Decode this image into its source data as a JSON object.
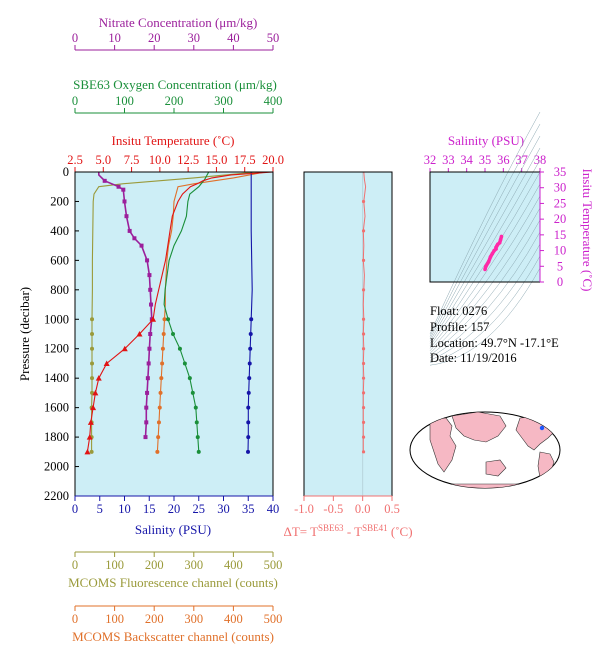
{
  "colors": {
    "nitrate": "#9b1f9b",
    "oxygen": "#1a8f3a",
    "temperature": "#e11414",
    "salinity": "#1515a8",
    "fluorescence": "#9a9a3a",
    "backscatter": "#e0702a",
    "delta_t": "#f07070",
    "ts_salinity": "#cc22cc",
    "ts_points": "#ff2aa8",
    "panel_bg": "#cdeef6"
  },
  "info": {
    "float": "Float:  0276",
    "profile": "Profile:  157",
    "location": "Location:  49.7°N  -17.1°E",
    "date": "Date:  11/19/2016"
  },
  "chart_data": [
    {
      "type": "line",
      "panel": "main profile",
      "ylabel": "Pressure (decibar)",
      "ylim": [
        2200,
        0
      ],
      "yticks": [
        0,
        200,
        400,
        600,
        800,
        1000,
        1200,
        1400,
        1600,
        1800,
        2000,
        2200
      ],
      "axes": {
        "nitrate": {
          "title": "Nitrate Concentration (μm/kg)",
          "range": [
            0,
            50
          ],
          "ticks": [
            "0",
            "10",
            "20",
            "30",
            "40",
            "50"
          ]
        },
        "oxygen": {
          "title": "SBE63 Oxygen Concentration (μm/kg)",
          "range": [
            0,
            400
          ],
          "ticks": [
            "0",
            "100",
            "200",
            "300",
            "400"
          ]
        },
        "temperature": {
          "title": "Insitu Temperature (˚C)",
          "range": [
            2.5,
            20.0
          ],
          "ticks": [
            "2.5",
            "5.0",
            "7.5",
            "10.0",
            "12.5",
            "15.0",
            "17.5",
            "20.0"
          ]
        },
        "salinity": {
          "title": "Salinity (PSU)",
          "range": [
            0,
            40
          ],
          "ticks": [
            "0",
            "5",
            "10",
            "15",
            "20",
            "25",
            "30",
            "35",
            "40"
          ]
        },
        "fluorescence": {
          "title": "MCOMS Fluorescence channel (counts)",
          "range": [
            0,
            500
          ],
          "ticks": [
            "0",
            "100",
            "200",
            "300",
            "400",
            "500"
          ]
        },
        "backscatter": {
          "title": "MCOMS Backscatter channel (counts)",
          "range": [
            0,
            500
          ],
          "ticks": [
            "0",
            "100",
            "200",
            "300",
            "400",
            "500"
          ]
        }
      },
      "series": [
        {
          "key": "temperature",
          "axis": "temperature",
          "p": [
            0,
            20,
            40,
            60,
            80,
            100,
            150,
            200,
            300,
            400,
            500,
            600,
            700,
            800,
            900,
            1000,
            1100,
            1200,
            1300,
            1400,
            1500,
            1600,
            1700,
            1800,
            1900
          ],
          "v": [
            20.0,
            16.3,
            14.6,
            13.8,
            13.3,
            12.7,
            12.0,
            11.6,
            11.1,
            10.9,
            10.7,
            10.5,
            10.2,
            9.9,
            9.6,
            9.4,
            8.2,
            6.9,
            5.3,
            4.6,
            4.3,
            4.1,
            3.9,
            3.8,
            3.6
          ],
          "markers": [
            1000,
            1100,
            1200,
            1300,
            1400,
            1500,
            1600,
            1700,
            1800,
            1900
          ]
        },
        {
          "key": "salinity",
          "axis": "salinity",
          "p": [
            0,
            100,
            200,
            400,
            600,
            800,
            1000,
            1100,
            1200,
            1300,
            1400,
            1500,
            1600,
            1700,
            1800,
            1900
          ],
          "v": [
            35.6,
            35.6,
            35.6,
            35.6,
            35.7,
            35.8,
            35.6,
            35.5,
            35.4,
            35.3,
            35.2,
            35.1,
            35.0,
            35.0,
            35.0,
            34.95
          ],
          "markers": [
            1000,
            1100,
            1200,
            1300,
            1400,
            1500,
            1600,
            1700,
            1800,
            1900
          ]
        },
        {
          "key": "nitrate",
          "axis": "nitrate",
          "p": [
            0,
            20,
            60,
            100,
            120,
            200,
            300,
            400,
            450,
            500,
            600,
            700,
            800,
            900,
            1000,
            1100,
            1200,
            1300,
            1400,
            1500,
            1600,
            1700,
            1800
          ],
          "v": [
            6.0,
            6.0,
            7.5,
            11.0,
            12.2,
            12.5,
            13.0,
            13.8,
            15.0,
            16.8,
            18.2,
            18.8,
            19.0,
            19.2,
            19.4,
            19.0,
            18.8,
            18.6,
            18.4,
            18.2,
            18.0,
            18.0,
            17.8
          ],
          "markers": [
            60,
            100,
            120,
            200,
            300,
            400,
            450,
            500,
            600,
            700,
            800,
            900,
            1000,
            1100,
            1200,
            1300,
            1400,
            1500,
            1600,
            1700,
            1800
          ]
        },
        {
          "key": "oxygen",
          "axis": "oxygen",
          "p": [
            0,
            50,
            100,
            150,
            200,
            300,
            400,
            500,
            600,
            700,
            800,
            900,
            1000,
            1100,
            1200,
            1300,
            1400,
            1500,
            1600,
            1700,
            1800,
            1900
          ],
          "v": [
            270,
            262,
            250,
            232,
            228,
            225,
            215,
            200,
            190,
            186,
            182,
            180,
            188,
            198,
            212,
            222,
            232,
            238,
            244,
            246,
            248,
            250
          ],
          "markers": [
            1000,
            1100,
            1200,
            1300,
            1400,
            1500,
            1600,
            1700,
            1800,
            1900
          ]
        },
        {
          "key": "fluorescence",
          "axis": "fluorescence",
          "p": [
            0,
            40,
            80,
            100,
            150,
            200,
            400,
            600,
            800,
            1000,
            1100,
            1200,
            1300,
            1400,
            1500,
            1600,
            1700,
            1800,
            1900
          ],
          "v": [
            460,
            300,
            120,
            60,
            48,
            46,
            45,
            44,
            44,
            43,
            43,
            43,
            43,
            43,
            43,
            42,
            42,
            42,
            42
          ],
          "markers": [
            1000,
            1100,
            1200,
            1300,
            1400,
            1500,
            1600,
            1700,
            1800,
            1900
          ]
        },
        {
          "key": "backscatter",
          "axis": "backscatter",
          "p": [
            0,
            40,
            80,
            100,
            200,
            300,
            400,
            500,
            600,
            700,
            800,
            900,
            1000,
            1100,
            1200,
            1300,
            1400,
            1500,
            1600,
            1700,
            1800,
            1900
          ],
          "v": [
            480,
            400,
            300,
            260,
            250,
            248,
            244,
            236,
            232,
            230,
            228,
            228,
            226,
            224,
            222,
            220,
            218,
            216,
            214,
            212,
            210,
            208
          ],
          "markers": [
            1000,
            1100,
            1200,
            1300,
            1400,
            1500,
            1600,
            1700,
            1800,
            1900
          ]
        }
      ]
    },
    {
      "type": "line",
      "panel": "delta temperature",
      "xlabel": "ΔT= T",
      "xlabel_sup1": "SBE63",
      "xlabel_mid": " - T",
      "xlabel_sup2": "SBE41",
      "xlabel_tail": " (˚C)",
      "xlim": [
        -1.0,
        0.5
      ],
      "xticks": [
        "-1.0",
        "-0.5",
        "0.0",
        "0.5"
      ],
      "ylim": [
        2200,
        0
      ],
      "series": [
        {
          "name": "ΔT",
          "p": [
            0,
            50,
            100,
            200,
            300,
            400,
            500,
            600,
            700,
            800,
            900,
            1000,
            1100,
            1200,
            1300,
            1400,
            1500,
            1600,
            1700,
            1800,
            1900
          ],
          "v": [
            0.02,
            0.03,
            0.05,
            0.02,
            0.04,
            0.01,
            0.02,
            0.01,
            0.03,
            0.02,
            0.01,
            0.02,
            0.01,
            0.02,
            0.01,
            0.02,
            0.01,
            0.01,
            0.01,
            0.01,
            0.01
          ],
          "markers": [
            200,
            400,
            600,
            800,
            1000,
            1100,
            1200,
            1300,
            1400,
            1500,
            1600,
            1700,
            1800,
            1900
          ]
        }
      ]
    },
    {
      "type": "scatter",
      "panel": "T-S diagram",
      "xlabel": "Salinity (PSU)",
      "ylabel": "Insitu Temperature (˚C)",
      "xlim": [
        32,
        38
      ],
      "ylim": [
        0,
        35
      ],
      "xticks": [
        "32",
        "33",
        "34",
        "35",
        "36",
        "37",
        "38"
      ],
      "yticks": [
        "0",
        "5",
        "10",
        "15",
        "20",
        "25",
        "30",
        "35"
      ],
      "points": [
        {
          "s": 35.0,
          "t": 4.0
        },
        {
          "s": 35.05,
          "t": 5.0
        },
        {
          "s": 35.2,
          "t": 6.5
        },
        {
          "s": 35.3,
          "t": 8.0
        },
        {
          "s": 35.4,
          "t": 9.0
        },
        {
          "s": 35.5,
          "t": 10.0
        },
        {
          "s": 35.6,
          "t": 10.5
        },
        {
          "s": 35.6,
          "t": 11.0
        },
        {
          "s": 35.65,
          "t": 11.5
        },
        {
          "s": 35.7,
          "t": 12.0
        },
        {
          "s": 35.8,
          "t": 12.5
        },
        {
          "s": 35.85,
          "t": 13.5
        },
        {
          "s": 35.9,
          "t": 14.5
        }
      ]
    }
  ]
}
